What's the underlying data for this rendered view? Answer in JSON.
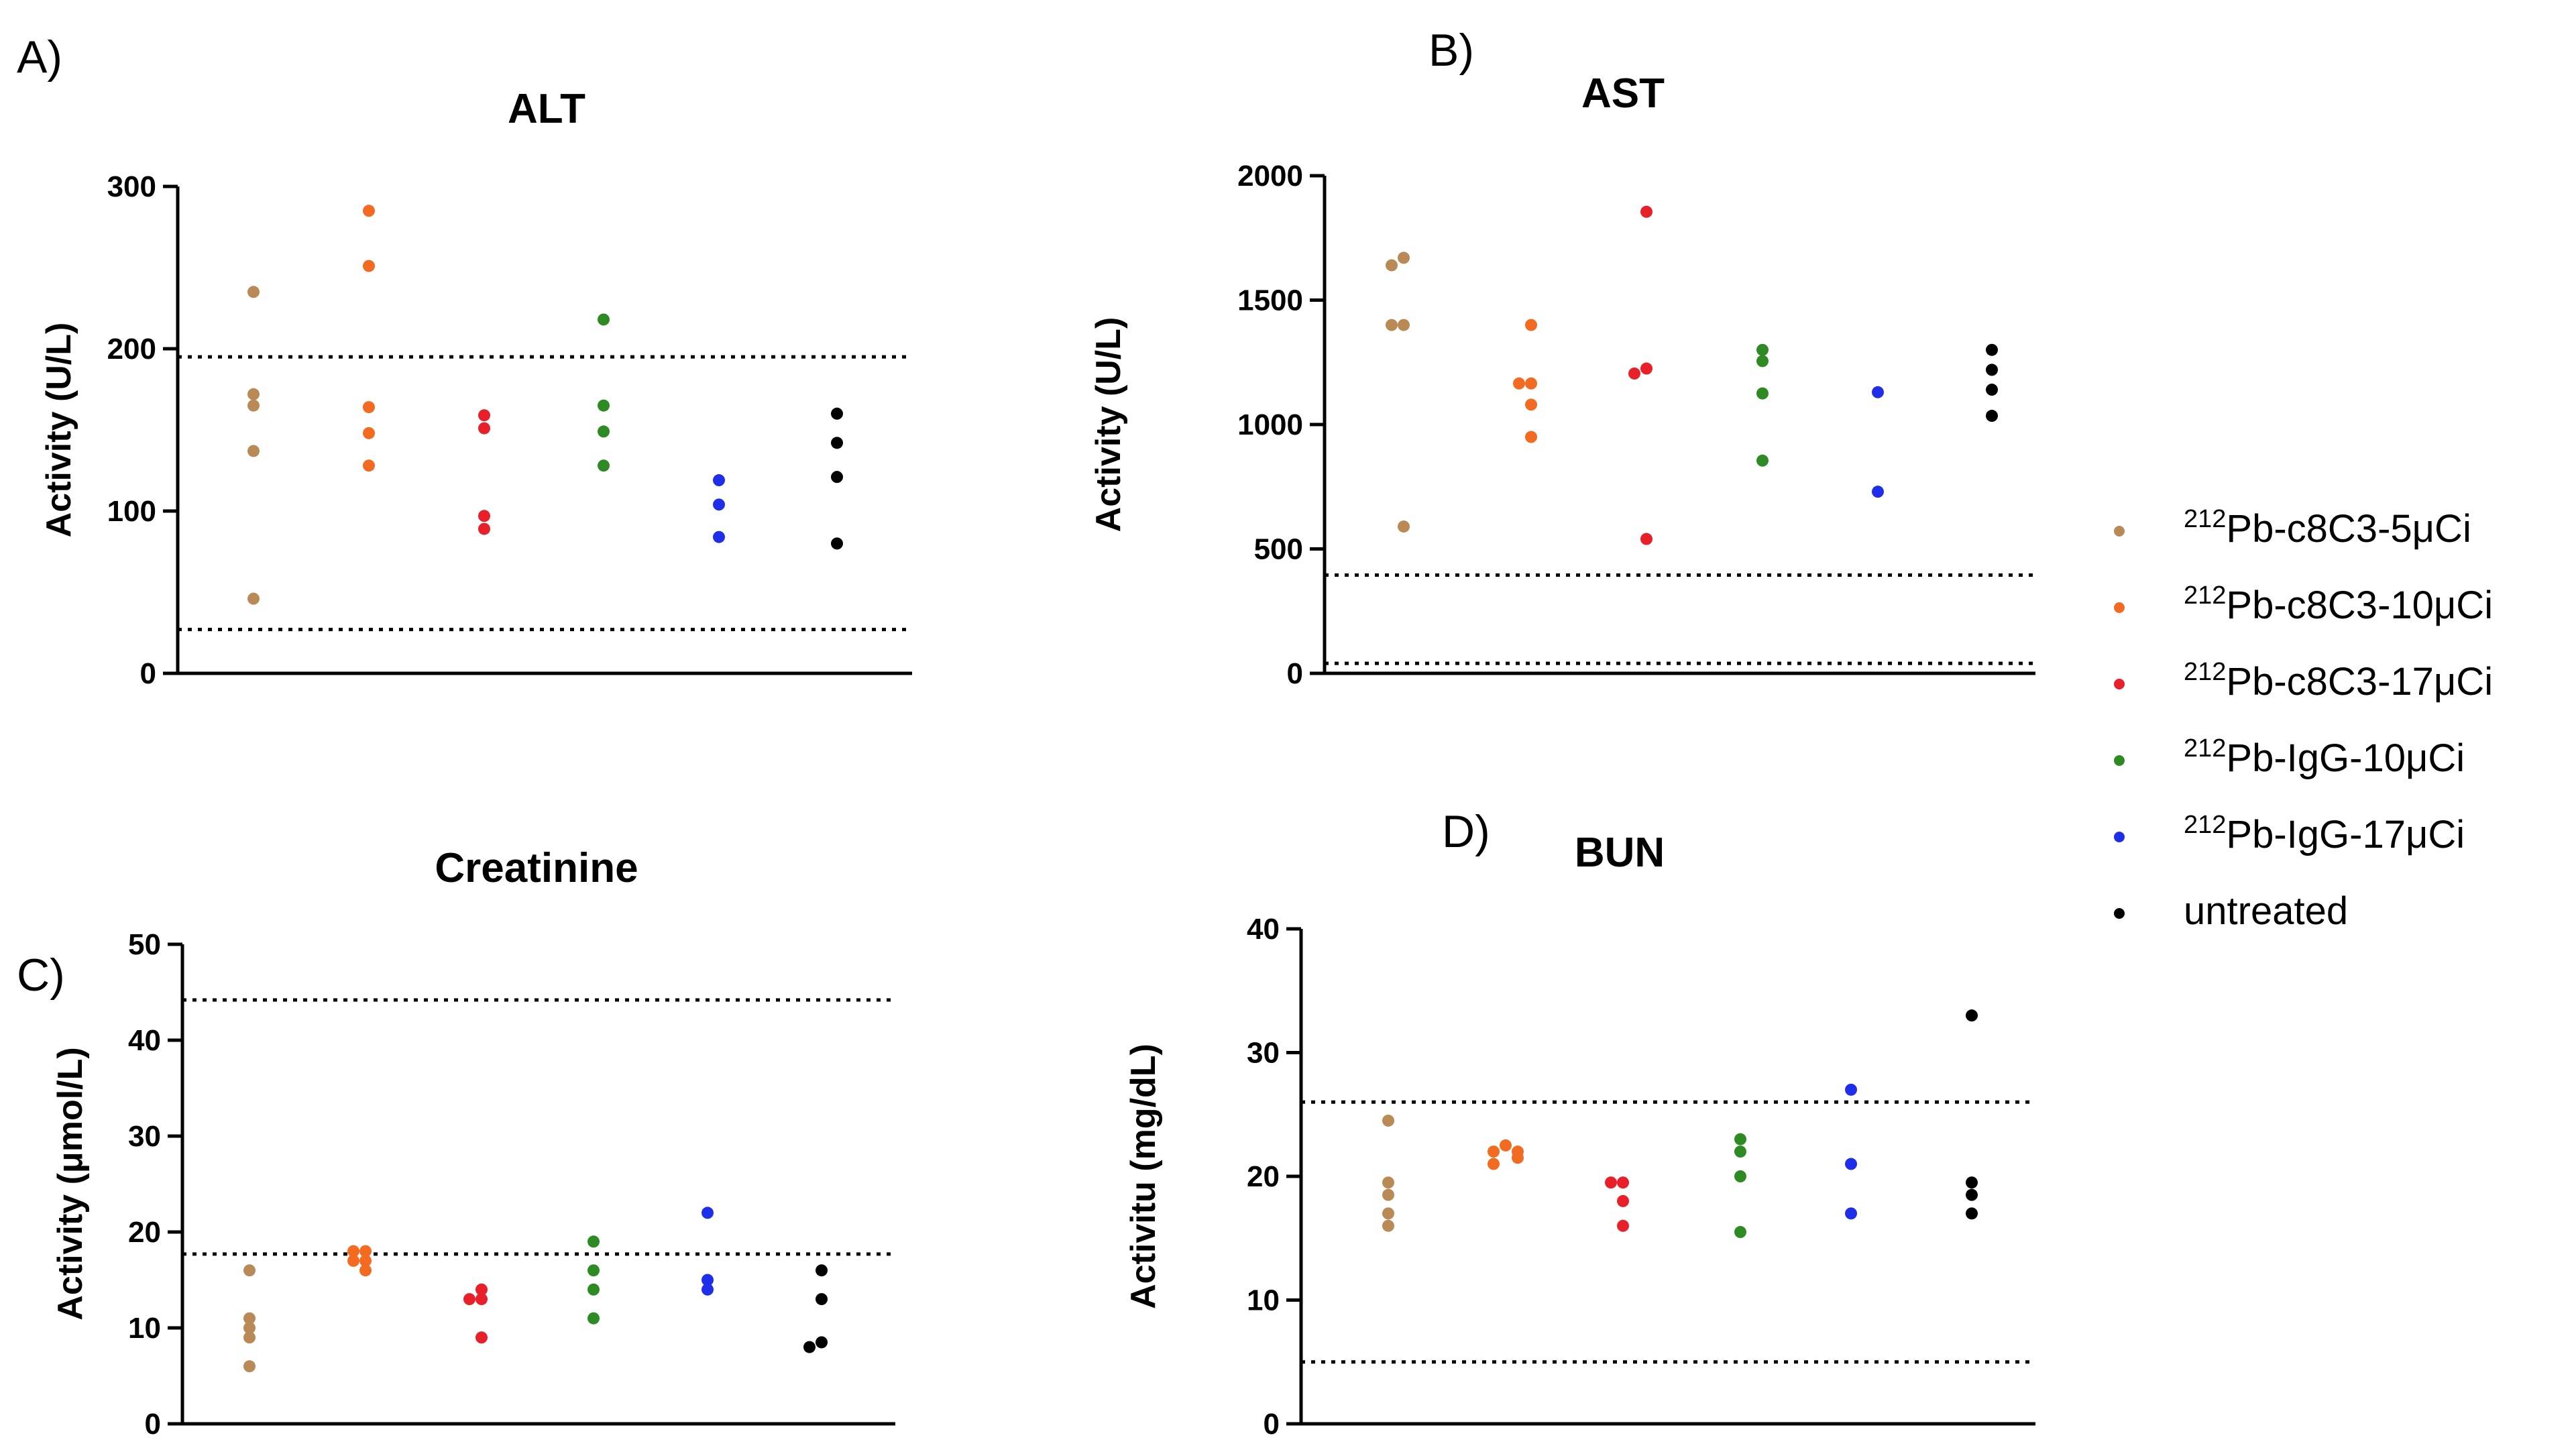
{
  "legend": {
    "items": [
      {
        "id": "c8c3_5",
        "sup": "212",
        "label": "Pb-c8C3-5μCi",
        "color": "#b98a56"
      },
      {
        "id": "c8c3_10",
        "sup": "212",
        "label": "Pb-c8C3-10μCi",
        "color": "#f26b21"
      },
      {
        "id": "c8c3_17",
        "sup": "212",
        "label": "Pb-c8C3-17μCi",
        "color": "#e8202a"
      },
      {
        "id": "igg_10",
        "sup": "212",
        "label": "Pb-IgG-10μCi",
        "color": "#2e8b24"
      },
      {
        "id": "igg_17",
        "sup": "212",
        "label": "Pb-IgG-17μCi",
        "color": "#1f2ee8"
      },
      {
        "id": "untreated",
        "sup": "",
        "label": "untreated",
        "color": "#000000"
      }
    ]
  },
  "chart_data": [
    {
      "type": "scatter",
      "panel_label": "A)",
      "title": "ALT",
      "ylabel": "Activity (U/L)",
      "ylim": [
        0,
        300
      ],
      "yticks": [
        0,
        100,
        200,
        300
      ],
      "reference_lines": [
        27,
        195
      ],
      "series": [
        {
          "name": "212Pb-c8C3-5μCi",
          "values": [
            235,
            172,
            165,
            137,
            46
          ]
        },
        {
          "name": "212Pb-c8C3-10μCi",
          "values": [
            285,
            251,
            164,
            148,
            128
          ]
        },
        {
          "name": "212Pb-c8C3-17μCi",
          "values": [
            159,
            151,
            97,
            89
          ]
        },
        {
          "name": "212Pb-IgG-10μCi",
          "values": [
            218,
            165,
            149,
            128
          ]
        },
        {
          "name": "212Pb-IgG-17μCi",
          "values": [
            119,
            104,
            84
          ]
        },
        {
          "name": "untreated",
          "values": [
            160,
            142,
            121,
            80
          ]
        }
      ]
    },
    {
      "type": "scatter",
      "panel_label": "B)",
      "title": "AST",
      "ylabel": "Activity (U/L)",
      "ylim": [
        0,
        2000
      ],
      "yticks": [
        0,
        500,
        1000,
        1500,
        2000
      ],
      "reference_lines": [
        40,
        395
      ],
      "series": [
        {
          "name": "212Pb-c8C3-5μCi",
          "values": [
            1670,
            1640,
            1400,
            1400,
            590
          ]
        },
        {
          "name": "212Pb-c8C3-10μCi",
          "values": [
            1400,
            1165,
            1165,
            1080,
            950
          ]
        },
        {
          "name": "212Pb-c8C3-17μCi",
          "values": [
            1855,
            1225,
            1205,
            540
          ]
        },
        {
          "name": "212Pb-IgG-10μCi",
          "values": [
            1300,
            1255,
            1125,
            855
          ]
        },
        {
          "name": "212Pb-IgG-17μCi",
          "values": [
            1130,
            730
          ]
        },
        {
          "name": "untreated",
          "values": [
            1300,
            1220,
            1140,
            1035
          ]
        }
      ]
    },
    {
      "type": "scatter",
      "panel_label": "C)",
      "title": "Creatinine",
      "ylabel": "Activity (μmol/L)",
      "ylim": [
        0,
        50
      ],
      "yticks": [
        0,
        10,
        20,
        30,
        40,
        50
      ],
      "reference_lines": [
        17.7,
        44.2
      ],
      "series": [
        {
          "name": "212Pb-c8C3-5μCi",
          "values": [
            16,
            11,
            10,
            9,
            6
          ]
        },
        {
          "name": "212Pb-c8C3-10μCi",
          "values": [
            18,
            18,
            17,
            17,
            16
          ]
        },
        {
          "name": "212Pb-c8C3-17μCi",
          "values": [
            14,
            13,
            13,
            9
          ]
        },
        {
          "name": "212Pb-IgG-10μCi",
          "values": [
            19,
            16,
            14,
            11
          ]
        },
        {
          "name": "212Pb-IgG-17μCi",
          "values": [
            22,
            15,
            14
          ]
        },
        {
          "name": "untreated",
          "values": [
            16,
            13,
            8.5,
            8
          ]
        }
      ]
    },
    {
      "type": "scatter",
      "panel_label": "D)",
      "title": "BUN",
      "ylabel": "Activitu (mg/dL)",
      "ylim": [
        0,
        40
      ],
      "yticks": [
        0,
        10,
        20,
        30,
        40
      ],
      "reference_lines": [
        5,
        26
      ],
      "series": [
        {
          "name": "212Pb-c8C3-5μCi",
          "values": [
            24.5,
            19.5,
            18.5,
            17,
            16
          ]
        },
        {
          "name": "212Pb-c8C3-10μCi",
          "values": [
            22.5,
            22,
            22,
            21.5,
            21
          ]
        },
        {
          "name": "212Pb-c8C3-17μCi",
          "values": [
            19.5,
            19.5,
            18,
            16
          ]
        },
        {
          "name": "212Pb-IgG-10μCi",
          "values": [
            23,
            22,
            20,
            15.5
          ]
        },
        {
          "name": "212Pb-IgG-17μCi",
          "values": [
            27,
            21,
            17
          ]
        },
        {
          "name": "untreated",
          "values": [
            33,
            19.5,
            18.5,
            17
          ]
        }
      ]
    }
  ]
}
